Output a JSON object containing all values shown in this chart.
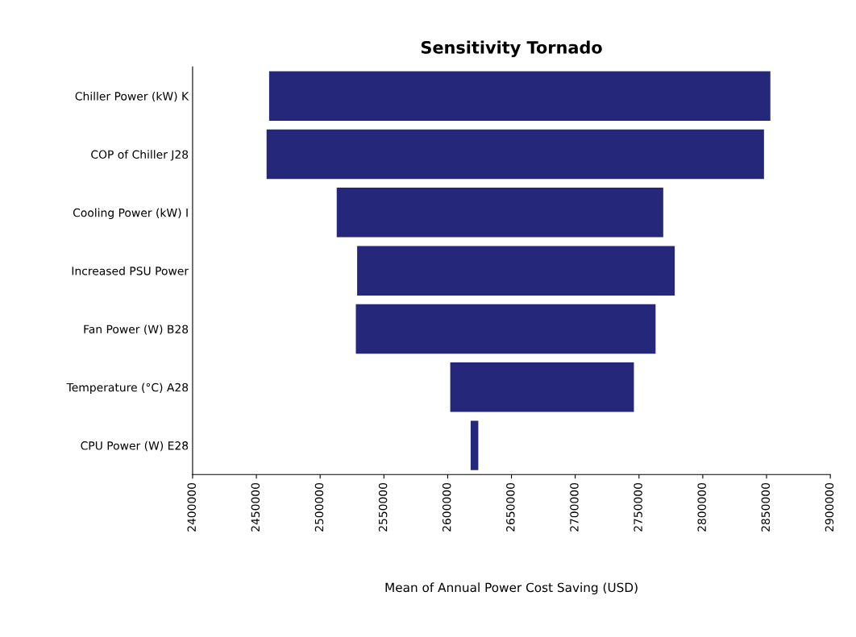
{
  "chart_data": {
    "type": "bar",
    "orientation": "horizontal",
    "title": "Sensitivity Tornado",
    "xlabel": "Mean of Annual Power Cost Saving (USD)",
    "categories": [
      "Chiller Power (kW) K",
      "COP of Chiller J28",
      "Cooling Power (kW) I",
      "Increased PSU Power",
      "Fan Power (W) B28",
      "Temperature (°C) A28",
      "CPU Power (W) E28"
    ],
    "base": [
      2460000,
      2458000,
      2513000,
      2529000,
      2528000,
      2602000,
      2618000
    ],
    "values": [
      393000,
      390000,
      256000,
      249000,
      235000,
      144000,
      6000
    ],
    "color": "#25287a",
    "xlim": [
      2400000,
      2900000
    ],
    "xticks": [
      2400000,
      2450000,
      2500000,
      2550000,
      2600000,
      2650000,
      2700000,
      2750000,
      2800000,
      2850000,
      2900000
    ],
    "grid": false,
    "legend": false
  }
}
